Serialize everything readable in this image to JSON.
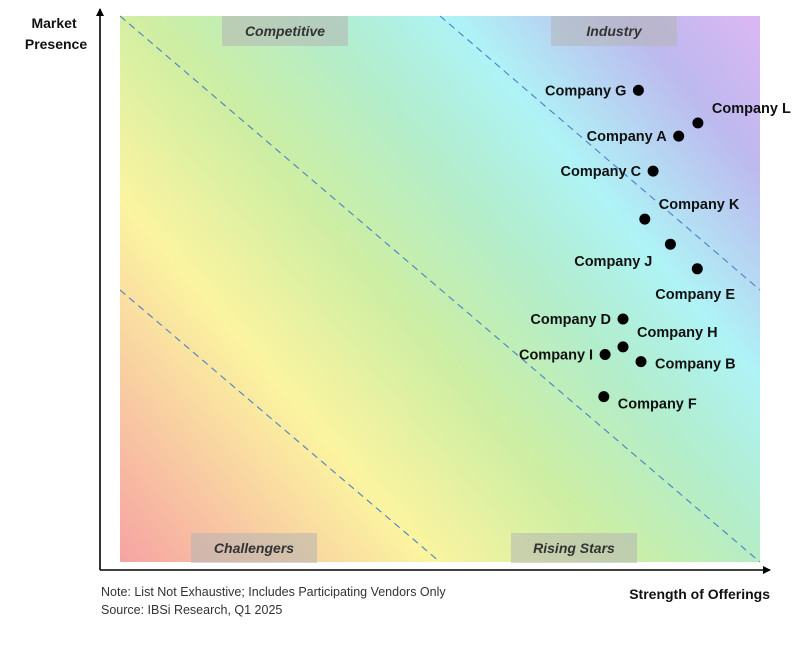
{
  "chart_data": {
    "type": "scatter",
    "ylabel_lines": [
      "Market",
      "Presence"
    ],
    "xlabel": "Strength of Offerings",
    "xlim": [
      0,
      100
    ],
    "ylim": [
      0,
      100
    ],
    "quadrants": {
      "top_left": "Competitive",
      "top_right": "Industry",
      "bottom_left": "Challengers",
      "bottom_right": "Rising Stars"
    },
    "points": [
      {
        "label": "Company G",
        "x": 81.0,
        "y": 86.4,
        "label_pos": "left"
      },
      {
        "label": "Company L",
        "x": 90.3,
        "y": 80.4,
        "label_pos": "above-right"
      },
      {
        "label": "Company A",
        "x": 87.3,
        "y": 78.0,
        "label_pos": "left"
      },
      {
        "label": "Company C",
        "x": 83.3,
        "y": 71.6,
        "label_pos": "left"
      },
      {
        "label": "Company K",
        "x": 82.0,
        "y": 62.8,
        "label_pos": "above-right"
      },
      {
        "label": "Company J",
        "x": 86.0,
        "y": 58.2,
        "label_pos": "below-left"
      },
      {
        "label": "Company E",
        "x": 90.2,
        "y": 53.7,
        "label_pos": "below-right"
      },
      {
        "label": "Company D",
        "x": 78.6,
        "y": 44.5,
        "label_pos": "left"
      },
      {
        "label": "Company H",
        "x": 78.6,
        "y": 39.4,
        "label_pos": "above-right"
      },
      {
        "label": "Company I",
        "x": 75.8,
        "y": 38.0,
        "label_pos": "left"
      },
      {
        "label": "Company B",
        "x": 81.4,
        "y": 36.7,
        "label_pos": "right"
      },
      {
        "label": "Company F",
        "x": 75.6,
        "y": 30.3,
        "label_pos": "below-right"
      }
    ]
  },
  "notes": [
    "Note: List Not Exhaustive; Includes Participating Vendors Only",
    "Source: IBSi Research, Q1 2025"
  ]
}
